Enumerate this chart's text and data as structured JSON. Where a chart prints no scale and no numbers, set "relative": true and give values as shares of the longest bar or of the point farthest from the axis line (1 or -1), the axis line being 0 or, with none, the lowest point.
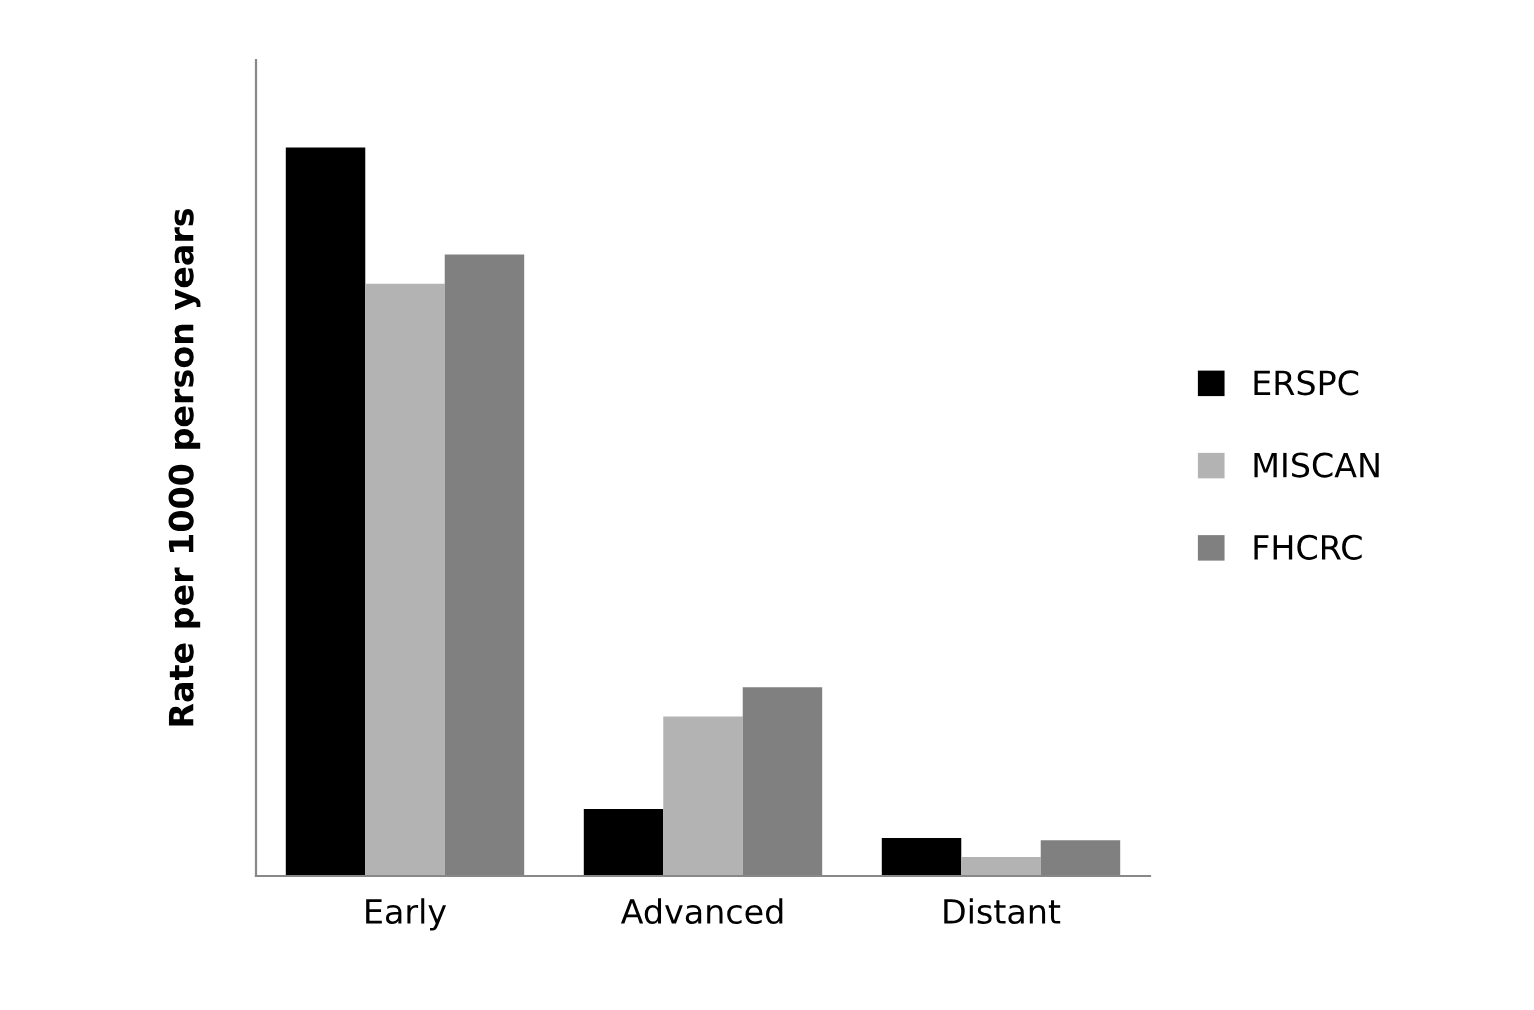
{
  "chart_data": {
    "type": "bar",
    "ylabel": "Rate per 1000 person years",
    "categories": [
      "Early",
      "Advanced",
      "Distant"
    ],
    "relative": true,
    "legend": "right",
    "grid": false,
    "series": [
      {
        "name": "ERSPC",
        "color": "#000000",
        "values": [
          1,
          0.092,
          0.052
        ]
      },
      {
        "name": "MISCAN",
        "color": "#b3b3b3",
        "values": [
          0.813,
          0.219,
          0.026
        ]
      },
      {
        "name": "FHCRC",
        "color": "#808080",
        "values": [
          0.853,
          0.259,
          0.049
        ]
      }
    ]
  }
}
